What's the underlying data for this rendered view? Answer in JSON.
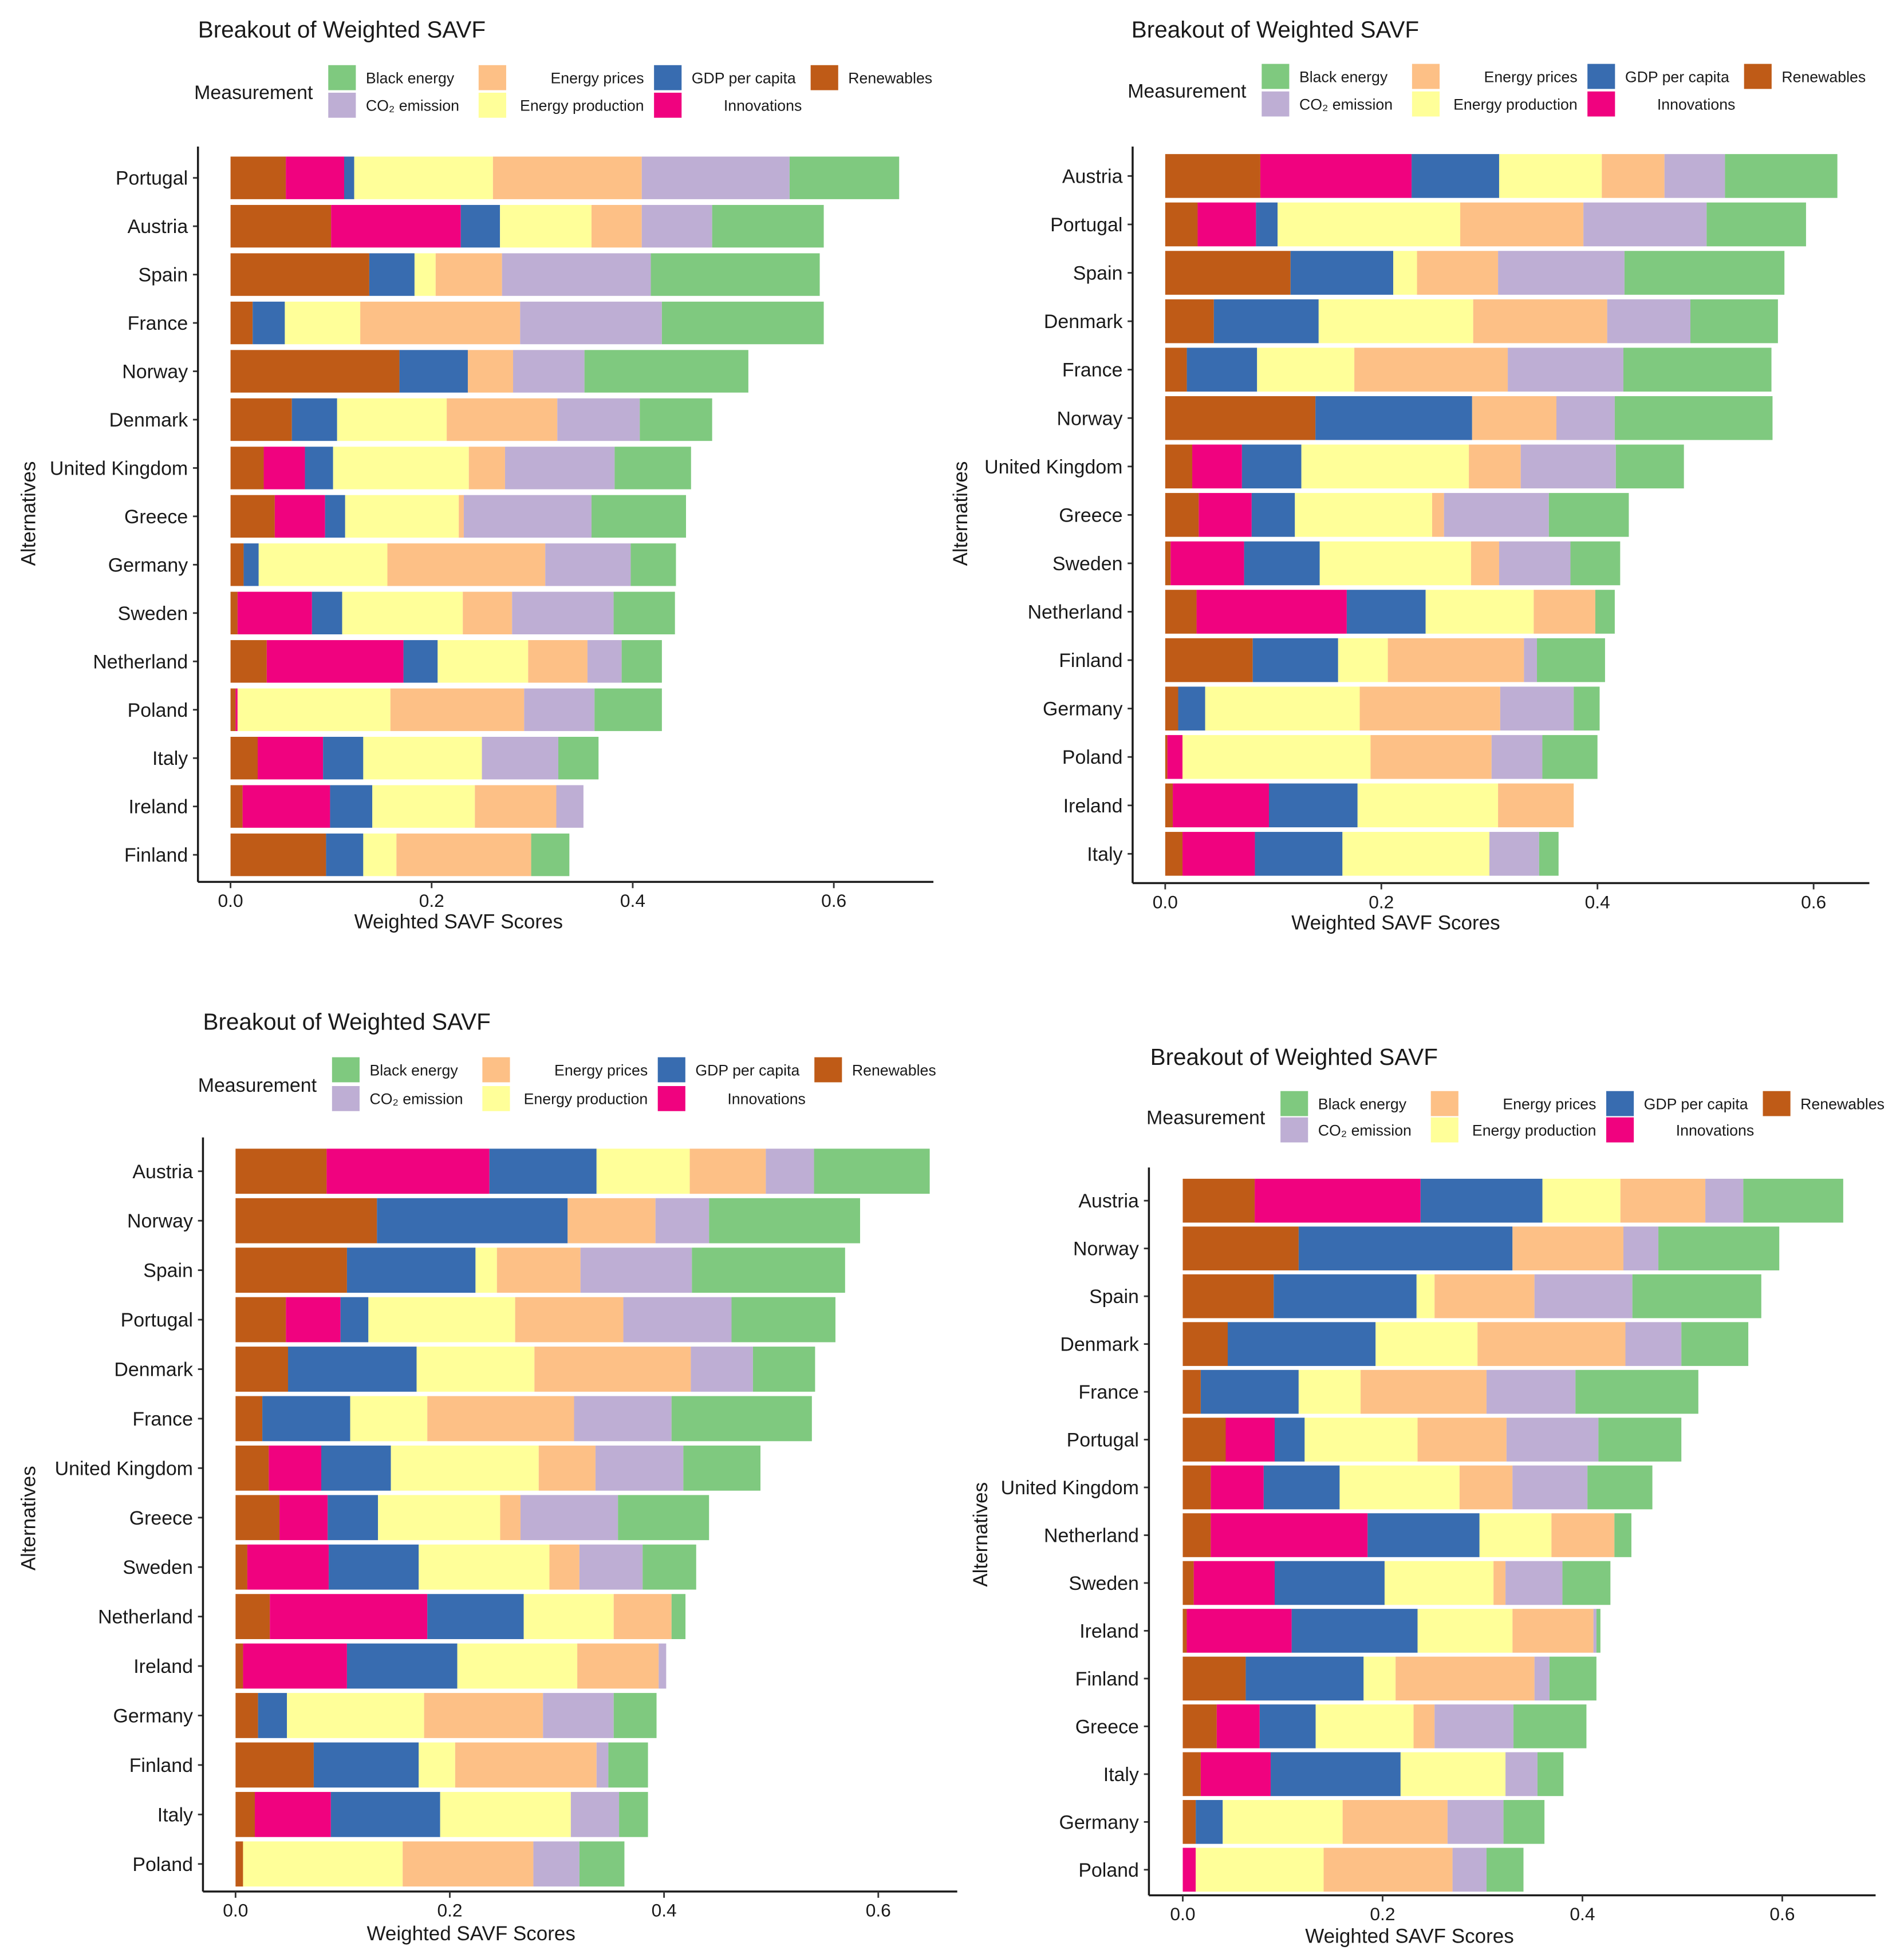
{
  "chart_data": [
    {
      "type": "bar",
      "orientation": "horizontal",
      "stacked": true,
      "title": "Breakout of Weighted SAVF",
      "xlabel": "Weighted SAVF Scores",
      "ylabel": "Alternatives",
      "xlim": [
        -0.032,
        0.697
      ],
      "xticks": [
        0.0,
        0.2,
        0.4,
        0.6
      ],
      "xtick_labels": [
        "0.0",
        "0.2",
        "0.4",
        "0.6"
      ],
      "legend": {
        "title": "Measurement",
        "placement": "top"
      },
      "categories": [
        "Portugal",
        "Austria",
        "Spain",
        "France",
        "Norway",
        "Denmark",
        "United Kingdom",
        "Greece",
        "Germany",
        "Sweden",
        "Netherland",
        "Poland",
        "Italy",
        "Ireland",
        "Finland"
      ],
      "series": [
        {
          "name": "Renewables",
          "values": [
            0.055,
            0.1,
            0.138,
            0.022,
            0.168,
            0.061,
            0.033,
            0.044,
            0.013,
            0.007,
            0.036,
            0.005,
            0.027,
            0.012,
            0.095
          ]
        },
        {
          "name": "Innovations",
          "values": [
            0.058,
            0.129,
            0.0,
            0.0,
            0.0,
            0.0,
            0.041,
            0.05,
            0.0,
            0.074,
            0.136,
            0.002,
            0.065,
            0.087,
            0.0
          ]
        },
        {
          "name": "GDP per capita",
          "values": [
            0.01,
            0.039,
            0.045,
            0.032,
            0.068,
            0.045,
            0.028,
            0.02,
            0.015,
            0.03,
            0.034,
            0.0,
            0.04,
            0.042,
            0.037
          ]
        },
        {
          "name": "Energy production",
          "values": [
            0.138,
            0.091,
            0.021,
            0.075,
            0.0,
            0.109,
            0.135,
            0.113,
            0.128,
            0.12,
            0.09,
            0.152,
            0.118,
            0.102,
            0.033
          ]
        },
        {
          "name": "Energy prices",
          "values": [
            0.148,
            0.05,
            0.066,
            0.159,
            0.045,
            0.11,
            0.036,
            0.005,
            0.157,
            0.049,
            0.059,
            0.133,
            0.0,
            0.081,
            0.134
          ]
        },
        {
          "name": "CO₂ emission",
          "values": [
            0.147,
            0.07,
            0.148,
            0.141,
            0.071,
            0.082,
            0.109,
            0.127,
            0.085,
            0.101,
            0.034,
            0.07,
            0.076,
            0.027,
            0.0
          ]
        },
        {
          "name": "Black energy",
          "values": [
            0.109,
            0.111,
            0.168,
            0.161,
            0.163,
            0.072,
            0.076,
            0.094,
            0.045,
            0.061,
            0.04,
            0.067,
            0.04,
            0.0,
            0.038
          ]
        }
      ]
    },
    {
      "type": "bar",
      "orientation": "horizontal",
      "stacked": true,
      "title": "Breakout of Weighted SAVF",
      "xlabel": "Weighted SAVF Scores",
      "ylabel": "Alternatives",
      "xlim": [
        -0.031,
        0.65
      ],
      "xticks": [
        0.0,
        0.2,
        0.4,
        0.6
      ],
      "xtick_labels": [
        "0.0",
        "0.2",
        "0.4",
        "0.6"
      ],
      "legend": {
        "title": "Measurement",
        "placement": "top"
      },
      "categories": [
        "Austria",
        "Portugal",
        "Spain",
        "Denmark",
        "France",
        "Norway",
        "United Kingdom",
        "Greece",
        "Sweden",
        "Netherland",
        "Finland",
        "Germany",
        "Poland",
        "Ireland",
        "Italy"
      ],
      "series": [
        {
          "name": "Renewables",
          "values": [
            0.088,
            0.03,
            0.116,
            0.045,
            0.02,
            0.139,
            0.025,
            0.031,
            0.005,
            0.029,
            0.081,
            0.012,
            0.002,
            0.007,
            0.016
          ]
        },
        {
          "name": "Innovations",
          "values": [
            0.14,
            0.054,
            0.0,
            0.0,
            0.0,
            0.0,
            0.046,
            0.049,
            0.068,
            0.139,
            0.0,
            0.0,
            0.014,
            0.089,
            0.067
          ]
        },
        {
          "name": "GDP per capita",
          "values": [
            0.081,
            0.02,
            0.095,
            0.097,
            0.065,
            0.145,
            0.055,
            0.04,
            0.07,
            0.073,
            0.079,
            0.025,
            0.0,
            0.082,
            0.081
          ]
        },
        {
          "name": "Energy production",
          "values": [
            0.095,
            0.169,
            0.022,
            0.143,
            0.09,
            0.0,
            0.155,
            0.127,
            0.14,
            0.1,
            0.046,
            0.143,
            0.174,
            0.13,
            0.136
          ]
        },
        {
          "name": "Energy prices",
          "values": [
            0.058,
            0.114,
            0.075,
            0.124,
            0.142,
            0.078,
            0.048,
            0.011,
            0.026,
            0.057,
            0.126,
            0.13,
            0.112,
            0.07,
            0.0
          ]
        },
        {
          "name": "CO₂ emission",
          "values": [
            0.056,
            0.114,
            0.117,
            0.077,
            0.107,
            0.054,
            0.088,
            0.097,
            0.066,
            0.0,
            0.012,
            0.068,
            0.047,
            0.0,
            0.046
          ]
        },
        {
          "name": "Black energy",
          "values": [
            0.104,
            0.092,
            0.148,
            0.081,
            0.137,
            0.146,
            0.063,
            0.074,
            0.046,
            0.018,
            0.063,
            0.024,
            0.051,
            0.0,
            0.018
          ]
        }
      ]
    },
    {
      "type": "bar",
      "orientation": "horizontal",
      "stacked": true,
      "title": "Breakout of Weighted SAVF",
      "xlabel": "Weighted SAVF Scores",
      "ylabel": "Alternatives",
      "xlim": [
        -0.031,
        0.672
      ],
      "xticks": [
        0.0,
        0.2,
        0.4,
        0.6
      ],
      "xtick_labels": [
        "0.0",
        "0.2",
        "0.4",
        "0.6"
      ],
      "legend": {
        "title": "Measurement",
        "placement": "top"
      },
      "categories": [
        "Austria",
        "Norway",
        "Spain",
        "Portugal",
        "Denmark",
        "France",
        "United Kingdom",
        "Greece",
        "Sweden",
        "Netherland",
        "Ireland",
        "Germany",
        "Finland",
        "Italy",
        "Poland"
      ],
      "series": [
        {
          "name": "Renewables",
          "values": [
            0.085,
            0.132,
            0.104,
            0.047,
            0.049,
            0.025,
            0.031,
            0.041,
            0.011,
            0.032,
            0.007,
            0.021,
            0.073,
            0.018,
            0.007
          ]
        },
        {
          "name": "Innovations",
          "values": [
            0.152,
            0.0,
            0.0,
            0.051,
            0.0,
            0.0,
            0.049,
            0.045,
            0.076,
            0.147,
            0.097,
            0.0,
            0.0,
            0.071,
            0.0
          ]
        },
        {
          "name": "GDP per capita",
          "values": [
            0.1,
            0.178,
            0.12,
            0.026,
            0.12,
            0.082,
            0.065,
            0.047,
            0.084,
            0.09,
            0.103,
            0.027,
            0.098,
            0.102,
            0.0
          ]
        },
        {
          "name": "Energy production",
          "values": [
            0.087,
            0.0,
            0.02,
            0.137,
            0.11,
            0.072,
            0.138,
            0.114,
            0.122,
            0.084,
            0.112,
            0.128,
            0.034,
            0.122,
            0.149
          ]
        },
        {
          "name": "Energy prices",
          "values": [
            0.071,
            0.082,
            0.078,
            0.101,
            0.146,
            0.137,
            0.053,
            0.019,
            0.028,
            0.054,
            0.076,
            0.111,
            0.132,
            0.0,
            0.122
          ]
        },
        {
          "name": "CO₂ emission",
          "values": [
            0.045,
            0.05,
            0.104,
            0.101,
            0.058,
            0.091,
            0.082,
            0.091,
            0.059,
            0.0,
            0.007,
            0.066,
            0.011,
            0.045,
            0.043
          ]
        },
        {
          "name": "Black energy",
          "values": [
            0.108,
            0.141,
            0.143,
            0.097,
            0.058,
            0.131,
            0.072,
            0.085,
            0.05,
            0.013,
            0.0,
            0.04,
            0.037,
            0.027,
            0.042
          ]
        }
      ]
    },
    {
      "type": "bar",
      "orientation": "horizontal",
      "stacked": true,
      "title": "Breakout of Weighted SAVF",
      "xlabel": "Weighted SAVF Scores",
      "ylabel": "Alternatives",
      "xlim": [
        -0.033,
        0.693
      ],
      "xticks": [
        0.0,
        0.2,
        0.4,
        0.6
      ],
      "xtick_labels": [
        "0.0",
        "0.2",
        "0.4",
        "0.6"
      ],
      "legend": {
        "title": "Measurement",
        "placement": "top"
      },
      "categories": [
        "Austria",
        "Norway",
        "Spain",
        "Denmark",
        "France",
        "Portugal",
        "United Kingdom",
        "Netherland",
        "Sweden",
        "Ireland",
        "Finland",
        "Greece",
        "Italy",
        "Germany",
        "Poland"
      ],
      "series": [
        {
          "name": "Renewables",
          "values": [
            0.072,
            0.116,
            0.091,
            0.045,
            0.018,
            0.043,
            0.028,
            0.028,
            0.011,
            0.004,
            0.063,
            0.034,
            0.018,
            0.013,
            0.0
          ]
        },
        {
          "name": "Innovations",
          "values": [
            0.166,
            0.0,
            0.0,
            0.0,
            0.0,
            0.049,
            0.053,
            0.157,
            0.081,
            0.105,
            0.0,
            0.043,
            0.07,
            0.0,
            0.013
          ]
        },
        {
          "name": "GDP per capita",
          "values": [
            0.122,
            0.214,
            0.143,
            0.148,
            0.098,
            0.03,
            0.076,
            0.112,
            0.11,
            0.126,
            0.118,
            0.056,
            0.13,
            0.027,
            0.0
          ]
        },
        {
          "name": "Energy production",
          "values": [
            0.078,
            0.0,
            0.018,
            0.102,
            0.062,
            0.113,
            0.12,
            0.072,
            0.109,
            0.095,
            0.032,
            0.098,
            0.105,
            0.12,
            0.128
          ]
        },
        {
          "name": "Energy prices",
          "values": [
            0.085,
            0.111,
            0.1,
            0.148,
            0.126,
            0.089,
            0.053,
            0.063,
            0.012,
            0.081,
            0.139,
            0.021,
            0.0,
            0.105,
            0.129
          ]
        },
        {
          "name": "CO₂ emission",
          "values": [
            0.038,
            0.035,
            0.098,
            0.056,
            0.089,
            0.092,
            0.075,
            0.0,
            0.057,
            0.003,
            0.015,
            0.079,
            0.032,
            0.056,
            0.034
          ]
        },
        {
          "name": "Black energy",
          "values": [
            0.1,
            0.121,
            0.129,
            0.067,
            0.123,
            0.083,
            0.065,
            0.017,
            0.048,
            0.004,
            0.047,
            0.073,
            0.026,
            0.041,
            0.037
          ]
        }
      ]
    }
  ],
  "legend_items": [
    {
      "key": "black_energy",
      "label": "Black energy",
      "color": "#7fc97f"
    },
    {
      "key": "co2_emission",
      "label": "CO₂ emission",
      "color": "#beaed4"
    },
    {
      "key": "energy_prices",
      "label": "Energy prices",
      "color": "#fdc086"
    },
    {
      "key": "energy_production",
      "label": "Energy production",
      "color": "#ffff99"
    },
    {
      "key": "gdp_per_capita",
      "label": "GDP per capita",
      "color": "#386cb0"
    },
    {
      "key": "innovations",
      "label": "Innovations",
      "color": "#f0027f"
    },
    {
      "key": "renewables",
      "label": "Renewables",
      "color": "#bf5b17"
    }
  ],
  "series_colors": {
    "Renewables": "#bf5b17",
    "Innovations": "#f0027f",
    "GDP per capita": "#386cb0",
    "Energy production": "#ffff99",
    "Energy prices": "#fdc086",
    "CO₂ emission": "#beaed4",
    "Black energy": "#7fc97f"
  }
}
